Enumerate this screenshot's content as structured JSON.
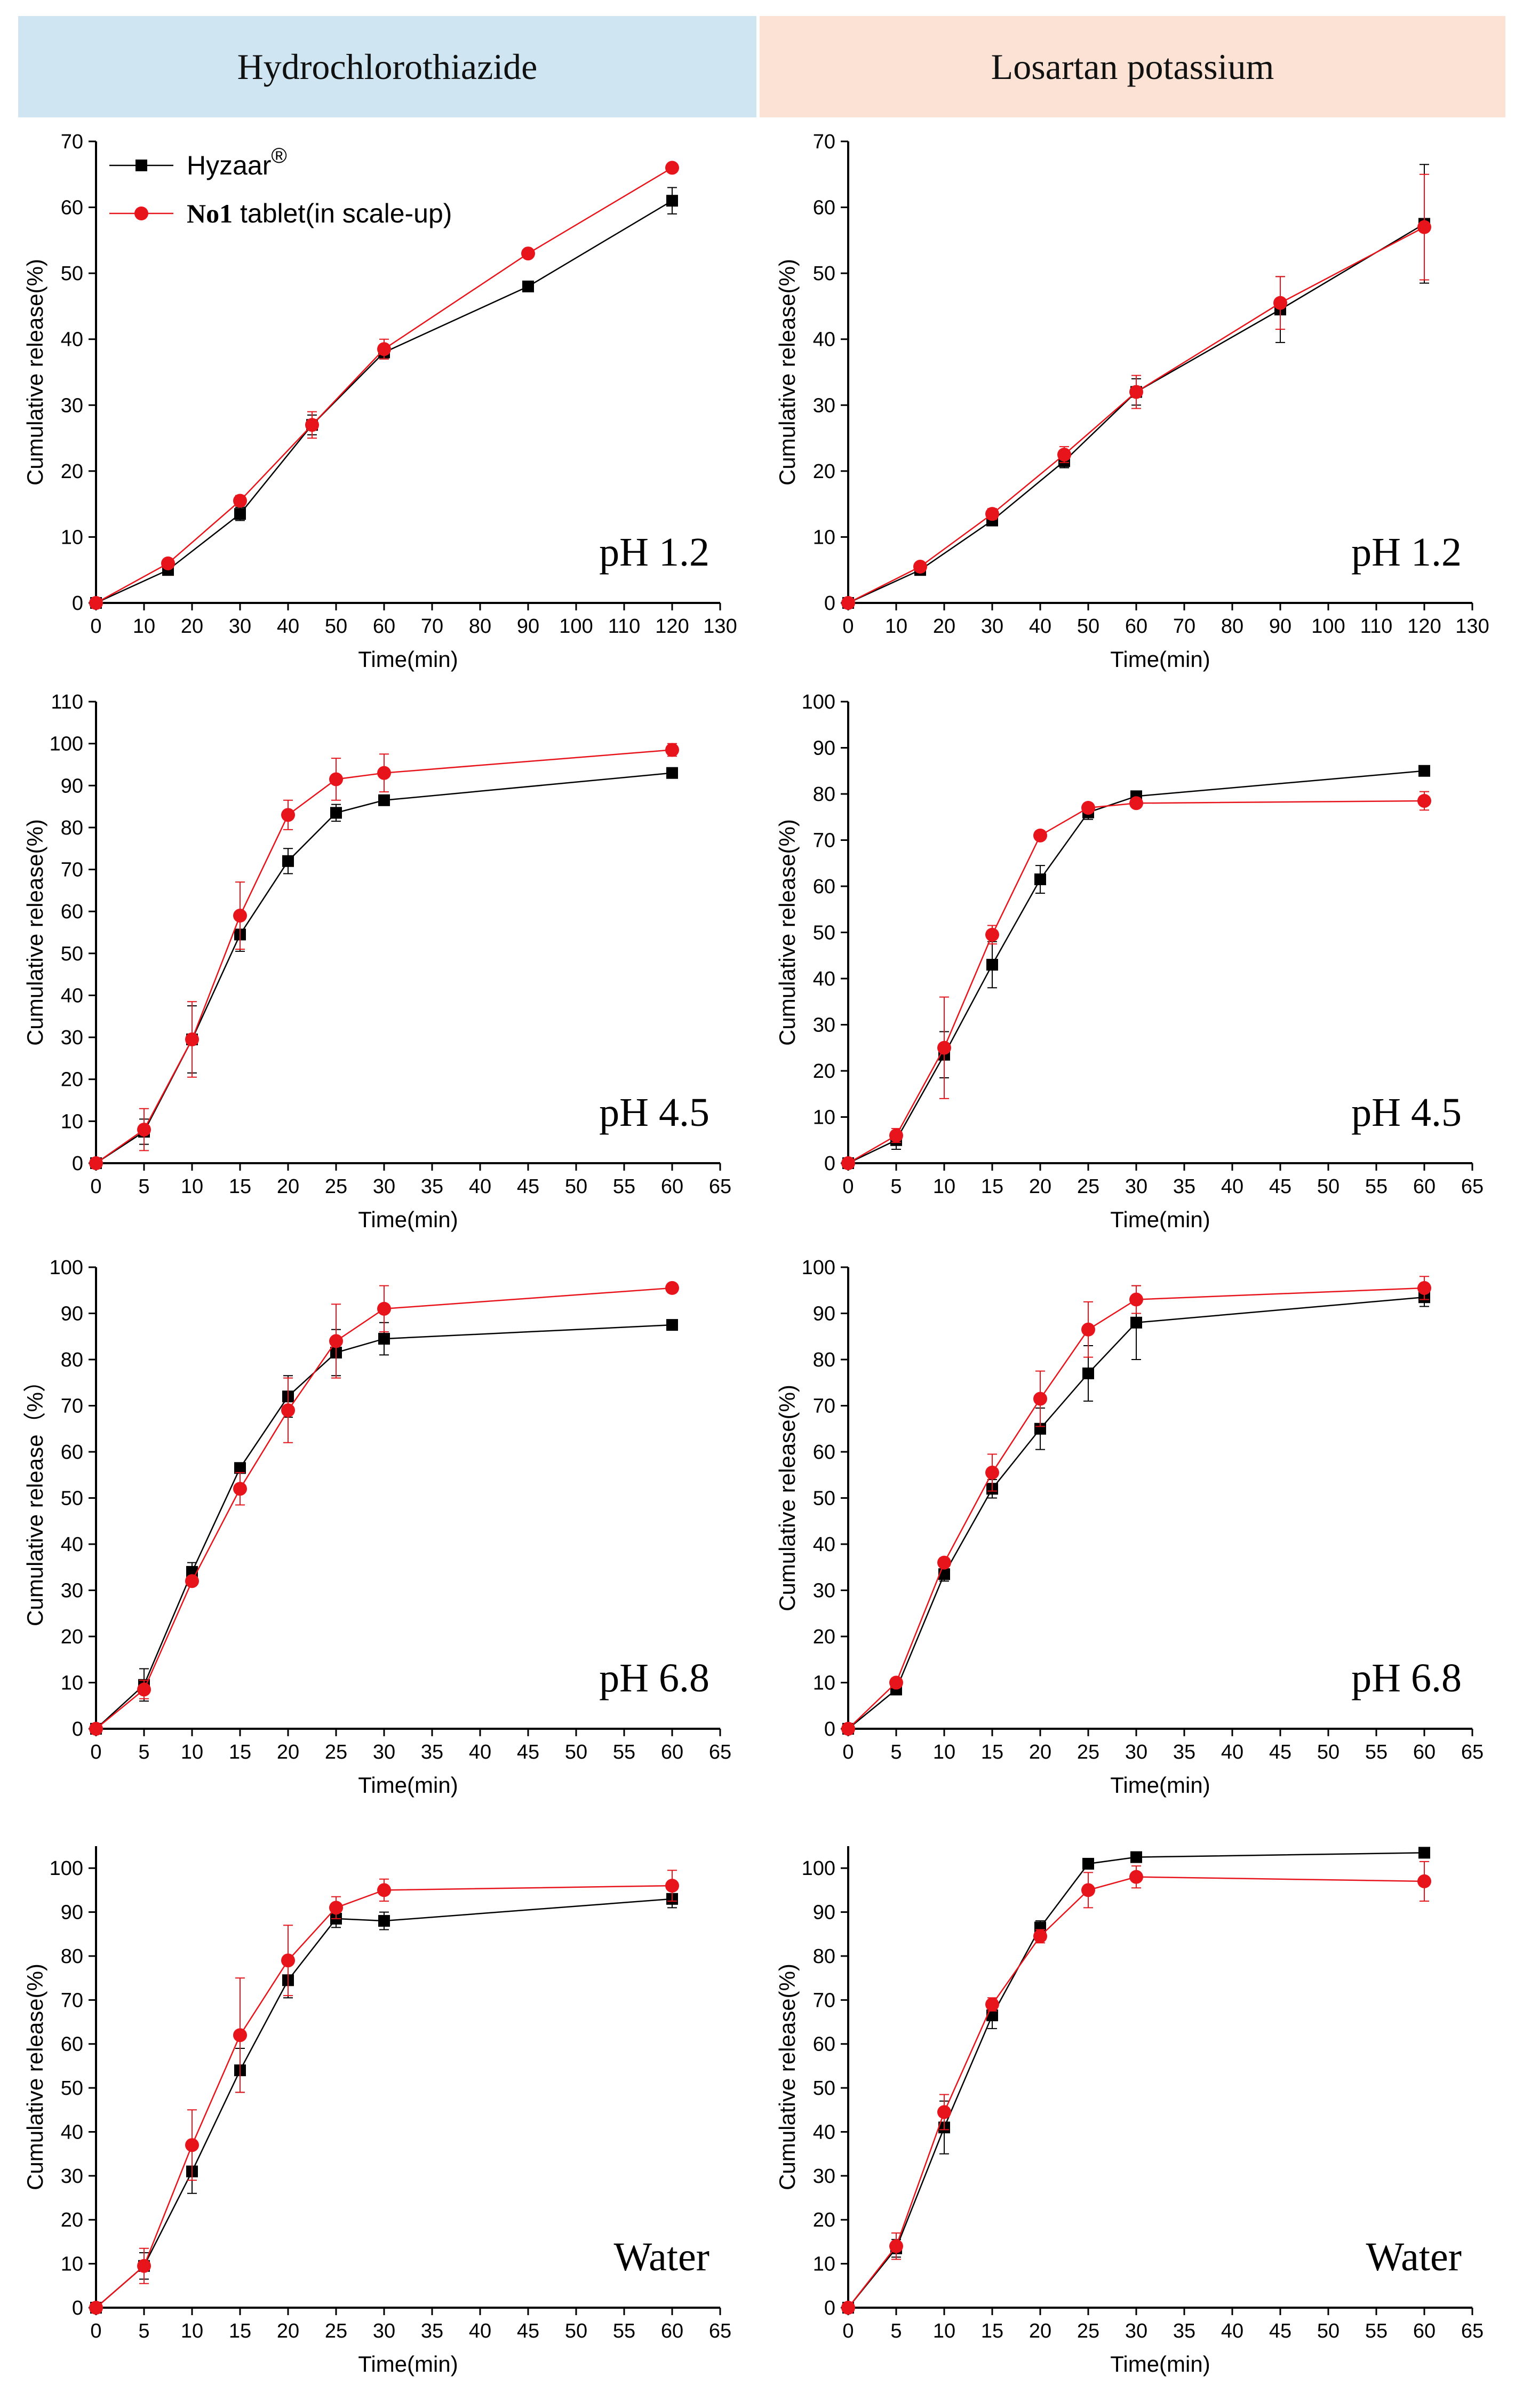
{
  "headers": {
    "left": "Hydrochlorothiazide",
    "right": "Losartan potassium"
  },
  "legend": {
    "series1": "Hyzaar",
    "series1_mark": "®",
    "series2_bold": "No1",
    "series2_rest": " tablet(in scale-up)"
  },
  "colors": {
    "hyzaar": "#000000",
    "no1": "#e8141b"
  },
  "chart_data": [
    {
      "type": "line",
      "drug": "Hydrochlorothiazide",
      "condition": "pH 1.2",
      "xlabel": "Time(min)",
      "ylabel": "Cumulative release(%)",
      "xlim": [
        0,
        130
      ],
      "ylim": [
        0,
        70
      ],
      "xstep": 10,
      "ystep": 10,
      "x": [
        0,
        15,
        30,
        45,
        60,
        90,
        120
      ],
      "series": [
        {
          "name": "Hyzaar®",
          "values": [
            0,
            5,
            13.5,
            27,
            38,
            48,
            61
          ],
          "err": [
            0,
            0.4,
            1,
            1.5,
            1,
            0.5,
            2
          ]
        },
        {
          "name": "No1 tablet(in scale-up)",
          "values": [
            0,
            6,
            15.5,
            27,
            38.5,
            53,
            66
          ],
          "err": [
            0,
            0.4,
            0.8,
            2,
            1.5,
            0.5,
            0.5
          ]
        }
      ]
    },
    {
      "type": "line",
      "drug": "Losartan potassium",
      "condition": "pH 1.2",
      "xlabel": "Time(min)",
      "ylabel": "Cumulative release(%)",
      "xlim": [
        0,
        130
      ],
      "ylim": [
        0,
        70
      ],
      "xstep": 10,
      "ystep": 10,
      "x": [
        0,
        15,
        30,
        45,
        60,
        90,
        120
      ],
      "series": [
        {
          "name": "Hyzaar®",
          "values": [
            0,
            5,
            12.5,
            21.5,
            32,
            44.5,
            57.5
          ],
          "err": [
            0,
            0.5,
            0.6,
            1,
            2,
            5,
            9
          ]
        },
        {
          "name": "No1 tablet(in scale-up)",
          "values": [
            0,
            5.5,
            13.5,
            22.5,
            32,
            45.5,
            57
          ],
          "err": [
            0,
            0.6,
            0.8,
            1.2,
            2.5,
            4,
            8
          ]
        }
      ]
    },
    {
      "type": "line",
      "drug": "Hydrochlorothiazide",
      "condition": "pH 4.5",
      "xlabel": "Time(min)",
      "ylabel": "Cumulative release(%)",
      "xlim": [
        0,
        65
      ],
      "ylim": [
        0,
        110
      ],
      "xstep": 5,
      "ystep": 10,
      "x": [
        0,
        5,
        10,
        15,
        20,
        25,
        30,
        60
      ],
      "series": [
        {
          "name": "Hyzaar®",
          "values": [
            0,
            7.5,
            29.5,
            54.5,
            72,
            83.5,
            86.5,
            93
          ],
          "err": [
            0,
            3,
            8,
            4,
            3,
            2,
            1,
            1
          ]
        },
        {
          "name": "No1 tablet(in scale-up)",
          "values": [
            0,
            8,
            29.5,
            59,
            83,
            91.5,
            93,
            98.5
          ],
          "err": [
            0,
            5,
            9,
            8,
            3.5,
            5,
            4.5,
            1.5
          ]
        }
      ]
    },
    {
      "type": "line",
      "drug": "Losartan potassium",
      "condition": "pH 4.5",
      "xlabel": "Time(min)",
      "ylabel": "Cumulative release(%)",
      "xlim": [
        0,
        65
      ],
      "ylim": [
        0,
        100
      ],
      "xstep": 5,
      "ystep": 10,
      "x": [
        0,
        5,
        10,
        15,
        20,
        25,
        30,
        60
      ],
      "series": [
        {
          "name": "Hyzaar®",
          "values": [
            0,
            5,
            23.5,
            43,
            61.5,
            76,
            79.5,
            85
          ],
          "err": [
            0,
            2,
            5,
            5,
            3,
            1.5,
            1,
            1
          ]
        },
        {
          "name": "No1 tablet(in scale-up)",
          "values": [
            0,
            6,
            25,
            49.5,
            71,
            77,
            78,
            78.5
          ],
          "err": [
            0,
            1.5,
            11,
            2,
            1,
            1,
            1,
            2
          ]
        }
      ]
    },
    {
      "type": "line",
      "drug": "Hydrochlorothiazide",
      "condition": "pH 6.8",
      "xlabel": "Time(min)",
      "ylabel": "Cumulative release（%）",
      "xlim": [
        0,
        65
      ],
      "ylim": [
        0,
        100
      ],
      "xstep": 5,
      "ystep": 10,
      "x": [
        0,
        5,
        10,
        15,
        20,
        25,
        30,
        60
      ],
      "series": [
        {
          "name": "Hyzaar®",
          "values": [
            0,
            9.5,
            34,
            56.5,
            72,
            81.5,
            84.5,
            87.5
          ],
          "err": [
            0,
            3.5,
            2,
            1,
            4.5,
            5,
            3.5,
            1
          ]
        },
        {
          "name": "No1 tablet(in scale-up)",
          "values": [
            0,
            8.5,
            32,
            52,
            69,
            84,
            91,
            95.5
          ],
          "err": [
            0,
            2,
            1,
            3.5,
            7,
            8,
            5,
            1
          ]
        }
      ]
    },
    {
      "type": "line",
      "drug": "Losartan potassium",
      "condition": "pH 6.8",
      "xlabel": "Time(min)",
      "ylabel": "Cumulative release(%)",
      "xlim": [
        0,
        65
      ],
      "ylim": [
        0,
        100
      ],
      "xstep": 5,
      "ystep": 10,
      "x": [
        0,
        5,
        10,
        15,
        20,
        25,
        30,
        60
      ],
      "series": [
        {
          "name": "Hyzaar®",
          "values": [
            0,
            8.5,
            33.5,
            52,
            65,
            77,
            88,
            93.5
          ],
          "err": [
            0,
            1,
            1.5,
            2,
            4.5,
            6,
            8,
            2
          ]
        },
        {
          "name": "No1 tablet(in scale-up)",
          "values": [
            0,
            10,
            36,
            55.5,
            71.5,
            86.5,
            93,
            95.5
          ],
          "err": [
            0,
            1,
            1,
            4,
            6,
            6,
            3,
            2.5
          ]
        }
      ]
    },
    {
      "type": "line",
      "drug": "Hydrochlorothiazide",
      "condition": "Water",
      "xlabel": "Time(min)",
      "ylabel": "Cumulative release(%)",
      "xlim": [
        0,
        65
      ],
      "ylim": [
        0,
        105
      ],
      "xstep": 5,
      "ystep": 10,
      "x": [
        0,
        5,
        10,
        15,
        20,
        25,
        30,
        60
      ],
      "series": [
        {
          "name": "Hyzaar®",
          "values": [
            0,
            9.5,
            31,
            54,
            74.5,
            88.5,
            88,
            93
          ],
          "err": [
            0,
            3,
            5,
            5,
            4,
            2,
            2,
            2
          ]
        },
        {
          "name": "No1 tablet(in scale-up)",
          "values": [
            0,
            9.5,
            37,
            62,
            79,
            91,
            95,
            96
          ],
          "err": [
            0,
            4,
            8,
            13,
            8,
            2.5,
            2.5,
            3.5
          ]
        }
      ]
    },
    {
      "type": "line",
      "drug": "Losartan potassium",
      "condition": "Water",
      "xlabel": "Time(min)",
      "ylabel": "Cumulative release(%)",
      "xlim": [
        0,
        65
      ],
      "ylim": [
        0,
        105
      ],
      "xstep": 5,
      "ystep": 10,
      "x": [
        0,
        5,
        10,
        15,
        20,
        25,
        30,
        60
      ],
      "series": [
        {
          "name": "Hyzaar®",
          "values": [
            0,
            13.5,
            41,
            66.5,
            86.5,
            101,
            102.5,
            103.5
          ],
          "err": [
            0,
            2,
            6,
            3,
            1.5,
            1,
            1,
            1
          ]
        },
        {
          "name": "No1 tablet(in scale-up)",
          "values": [
            0,
            14,
            44.5,
            69,
            84.5,
            95,
            98,
            97
          ],
          "err": [
            0,
            3,
            4,
            1.5,
            1.5,
            4,
            2.5,
            4.5
          ]
        }
      ]
    }
  ]
}
